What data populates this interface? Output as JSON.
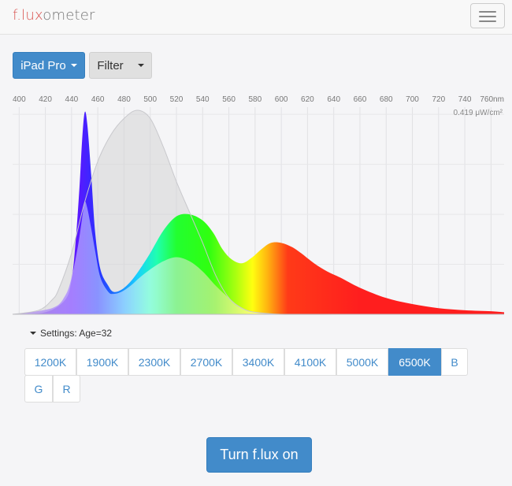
{
  "brand": {
    "prefix": "f.lux",
    "suffix": "ometer"
  },
  "toolbar": {
    "device_label": "iPad Pro",
    "filter_label": "Filter"
  },
  "chart_data": {
    "type": "area",
    "x_ticks": [
      "400",
      "420",
      "440",
      "460",
      "480",
      "500",
      "520",
      "540",
      "560",
      "580",
      "600",
      "620",
      "640",
      "660",
      "680",
      "700",
      "720",
      "740",
      "760nm"
    ],
    "x_tick_values": [
      400,
      420,
      440,
      460,
      480,
      500,
      520,
      540,
      560,
      580,
      600,
      620,
      640,
      660,
      680,
      700,
      720,
      740,
      760
    ],
    "xlim": [
      395,
      770
    ],
    "max_label": "0.419 μW/cm²",
    "ylim": [
      0,
      1
    ],
    "series": [
      {
        "role": "sensitivity-curve",
        "x": [
          395,
          415,
          425,
          430,
          440,
          450,
          460,
          470,
          480,
          490,
          500,
          510,
          520,
          530,
          540,
          550,
          560,
          570,
          580,
          600,
          640
        ],
        "y": [
          0.0,
          0.02,
          0.07,
          0.12,
          0.3,
          0.55,
          0.75,
          0.88,
          0.96,
          1.0,
          0.96,
          0.82,
          0.65,
          0.5,
          0.35,
          0.19,
          0.08,
          0.03,
          0.01,
          0.0,
          0.0
        ]
      },
      {
        "role": "display-spectrum",
        "x": [
          395,
          420,
          435,
          440,
          443,
          446,
          448,
          450,
          452,
          455,
          458,
          462,
          468,
          472,
          478,
          485,
          492,
          500,
          510,
          520,
          530,
          540,
          548,
          555,
          562,
          570,
          578,
          585,
          592,
          600,
          608,
          615,
          625,
          635,
          645,
          660,
          680,
          700,
          720,
          740,
          760,
          770
        ],
        "y": [
          0.0,
          0.01,
          0.07,
          0.17,
          0.35,
          0.62,
          0.85,
          0.99,
          0.93,
          0.68,
          0.4,
          0.22,
          0.14,
          0.11,
          0.12,
          0.16,
          0.22,
          0.3,
          0.41,
          0.48,
          0.49,
          0.46,
          0.4,
          0.32,
          0.27,
          0.25,
          0.28,
          0.32,
          0.35,
          0.35,
          0.33,
          0.3,
          0.25,
          0.21,
          0.18,
          0.13,
          0.08,
          0.05,
          0.03,
          0.02,
          0.015,
          0.01
        ]
      },
      {
        "role": "filtered-spectrum",
        "x": [
          395,
          425,
          435,
          440,
          445,
          448,
          450,
          452,
          455,
          458,
          462,
          468,
          472,
          478,
          485,
          492,
          500,
          510,
          520,
          530,
          540,
          550,
          560,
          570,
          580,
          600
        ],
        "y": [
          0.0,
          0.03,
          0.09,
          0.18,
          0.34,
          0.47,
          0.55,
          0.52,
          0.42,
          0.31,
          0.18,
          0.11,
          0.1,
          0.11,
          0.14,
          0.18,
          0.22,
          0.26,
          0.28,
          0.26,
          0.21,
          0.14,
          0.08,
          0.03,
          0.01,
          0.0
        ]
      }
    ]
  },
  "settings": {
    "label": "Settings: Age=32"
  },
  "presets": [
    "1200K",
    "1900K",
    "2300K",
    "2700K",
    "3400K",
    "4100K",
    "5000K",
    "6500K",
    "B",
    "G",
    "R"
  ],
  "active_preset": "6500K",
  "cta": {
    "label": "Turn f.lux on"
  },
  "colors": {
    "accent": "#428bca",
    "brand_red": "#d9534f"
  }
}
